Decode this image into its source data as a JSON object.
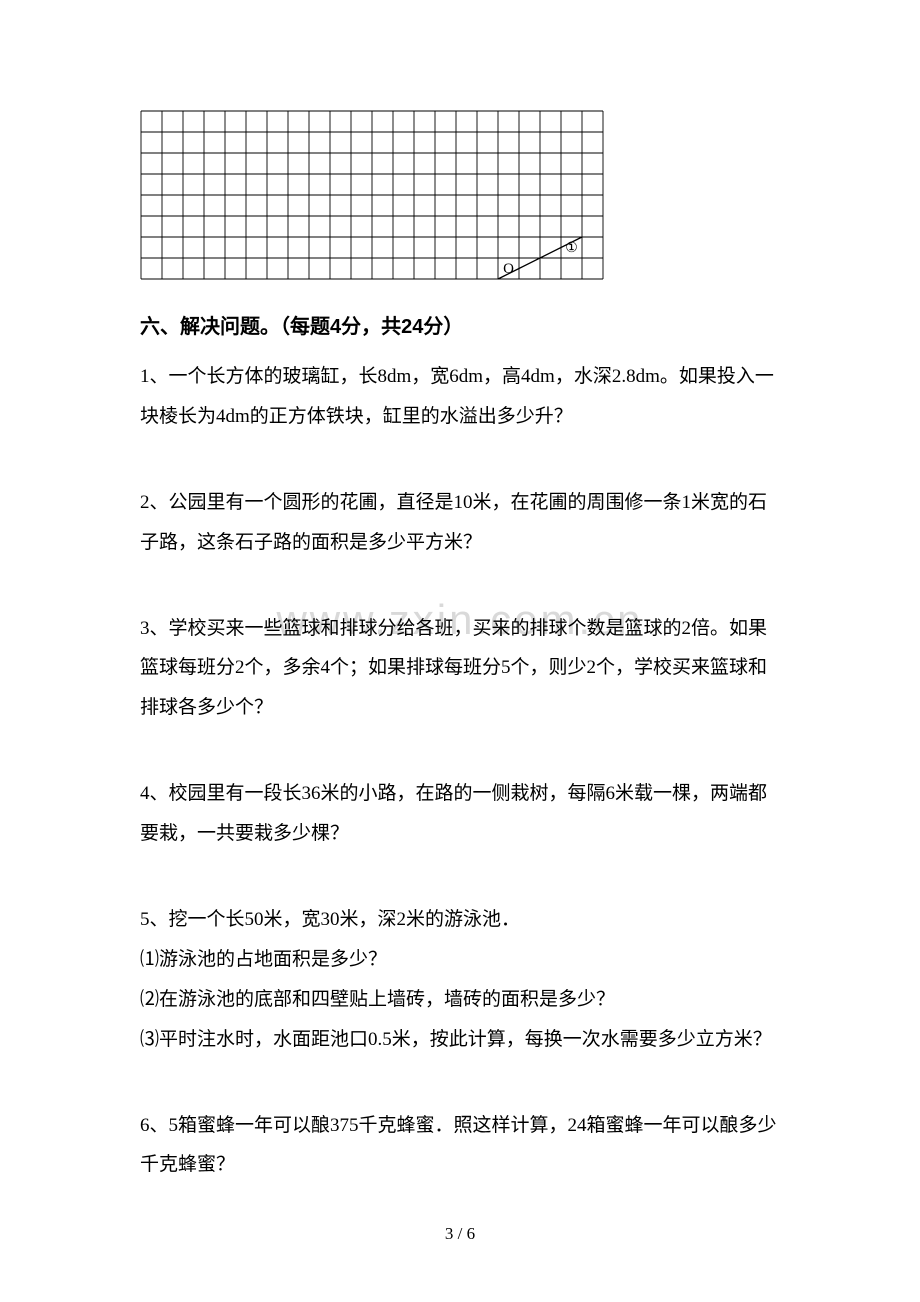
{
  "grid": {
    "cols": 22,
    "rows": 8,
    "cell": 21,
    "stroke": "#000000",
    "stroke_width": 0.9,
    "origin_label": "O",
    "origin_col": 17,
    "origin_row": 8,
    "slot_label": "①",
    "slot_col": 20,
    "slot_row": 7,
    "line_start_col": 17,
    "line_start_row": 8,
    "line_end_col": 21,
    "line_end_row": 6
  },
  "heading": "六、解决问题。（每题4分，共24分）",
  "questions": {
    "q1": "1、一个长方体的玻璃缸，长8dm，宽6dm，高4dm，水深2.8dm。如果投入一块棱长为4dm的正方体铁块，缸里的水溢出多少升？",
    "q2": "2、公园里有一个圆形的花圃，直径是10米，在花圃的周围修一条1米宽的石子路，这条石子路的面积是多少平方米？",
    "q3": "3、学校买来一些篮球和排球分给各班，买来的排球个数是篮球的2倍。如果篮球每班分2个，多余4个；如果排球每班分5个，则少2个，学校买来篮球和排球各多少个？",
    "q4": "4、校园里有一段长36米的小路，在路的一侧栽树，每隔6米载一棵，两端都要栽，一共要栽多少棵？",
    "q5a": "5、挖一个长50米，宽30米，深2米的游泳池．",
    "q5b": "⑴游泳池的占地面积是多少？",
    "q5c": "⑵在游泳池的底部和四壁贴上墙砖，墙砖的面积是多少？",
    "q5d": "⑶平时注水时，水面距池口0.5米，按此计算，每换一次水需要多少立方米？",
    "q6": "6、5箱蜜蜂一年可以酿375千克蜂蜜．照这样计算，24箱蜜蜂一年可以酿多少千克蜂蜜？"
  },
  "watermark": "www.zxin.com.cn",
  "page_number": "3 / 6",
  "colors": {
    "text": "#000000",
    "bg": "#ffffff",
    "watermark": "#d9d9d9"
  }
}
